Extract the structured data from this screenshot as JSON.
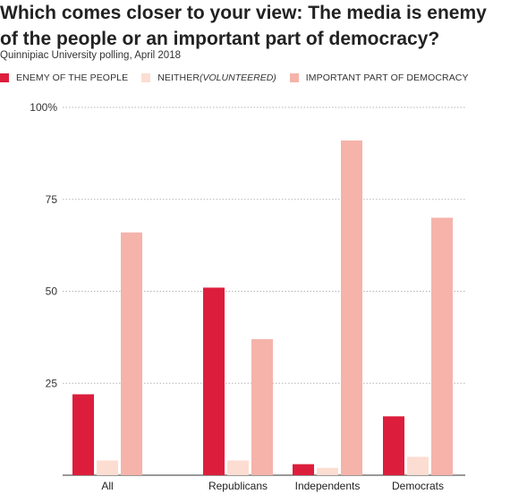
{
  "colors": {
    "enemy": "#dc1e3c",
    "neither": "#fcddd2",
    "democracy": "#f5b3aa"
  },
  "legend": {
    "items": [
      {
        "series": "enemy",
        "name": "ENEMY OF THE PEOPLE",
        "note": ""
      },
      {
        "series": "neither",
        "name": "NEITHER ",
        "note": "(VOLUNTEERED)"
      },
      {
        "series": "democracy",
        "name": "IMPORTANT PART OF DEMOCRACY",
        "note": ""
      }
    ]
  },
  "chart_data": {
    "type": "bar",
    "title": "Which comes closer to your view: The media is enemy of the people or an important part of democracy?",
    "subtitle": "Quinnipiac University polling, April 2018",
    "categories": [
      "All",
      "Republicans",
      "Independents",
      "Democrats"
    ],
    "series": [
      {
        "name": "ENEMY OF THE PEOPLE",
        "key": "enemy",
        "values": [
          22,
          51,
          3,
          16
        ]
      },
      {
        "name": "NEITHER (VOLUNTEERED)",
        "key": "neither",
        "values": [
          4,
          4,
          2,
          5
        ]
      },
      {
        "name": "IMPORTANT PART OF DEMOCRACY",
        "key": "democracy",
        "values": [
          66,
          37,
          91,
          70
        ]
      }
    ],
    "ylim": [
      0,
      100
    ],
    "yticks": [
      25,
      50,
      75,
      100
    ],
    "ytick_labels": [
      "25",
      "50",
      "75",
      "100%"
    ],
    "grid": true,
    "legend_position": "top-left"
  }
}
